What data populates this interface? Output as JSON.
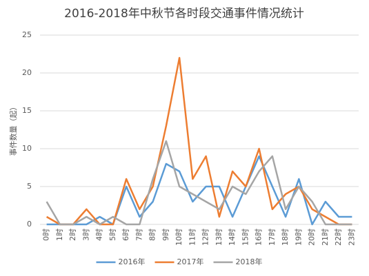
{
  "chart_data": {
    "type": "line",
    "title": "2016-2018年中秋节各时段交通事件情况统计",
    "y_label": "事件数量（起）",
    "categories": [
      "0时",
      "1时",
      "2时",
      "3时",
      "4时",
      "5时",
      "6时",
      "7时",
      "8时",
      "9时",
      "10时",
      "11时",
      "12时",
      "13时",
      "14时",
      "15时",
      "16时",
      "17时",
      "18时",
      "19时",
      "20时",
      "21时",
      "22时",
      "23时"
    ],
    "series": [
      {
        "name": "2016年",
        "color": "#5b9bd5",
        "values": [
          0,
          0,
          0,
          0,
          1,
          0,
          5,
          1,
          3,
          8,
          7,
          3,
          5,
          5,
          1,
          5,
          9,
          5,
          1,
          6,
          0,
          3,
          1,
          1
        ]
      },
      {
        "name": "2017年",
        "color": "#ed7d31",
        "values": [
          1,
          0,
          0,
          2,
          0,
          0,
          6,
          2,
          5,
          13,
          22,
          6,
          9,
          1,
          7,
          5,
          10,
          2,
          4,
          5,
          2,
          1,
          0,
          0
        ]
      },
      {
        "name": "2018年",
        "color": "#a5a5a5",
        "values": [
          3,
          0,
          0,
          1,
          0,
          1,
          0,
          0,
          6,
          11,
          5,
          4,
          3,
          2,
          5,
          4,
          7,
          9,
          2,
          5,
          3,
          0,
          0,
          0
        ]
      }
    ],
    "ylim": [
      0,
      25
    ],
    "yticks": [
      0,
      5,
      10,
      15,
      20,
      25
    ],
    "grid": true,
    "legend": "bottom"
  }
}
